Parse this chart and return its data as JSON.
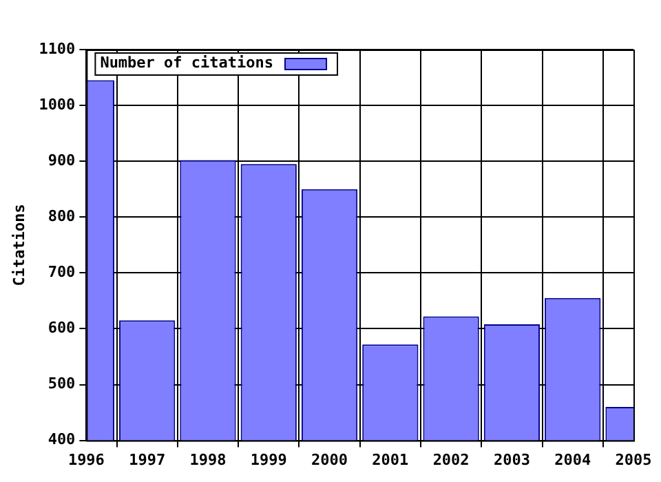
{
  "chart_data": {
    "type": "bar",
    "ylabel": "Citations",
    "x": [
      1996,
      1997,
      1998,
      1999,
      2000,
      2001,
      2002,
      2003,
      2004,
      2005
    ],
    "series": [
      {
        "name": "Number of citations",
        "color": "#7f7fff",
        "values": [
          1045,
          615,
          902,
          895,
          850,
          572,
          622,
          608,
          655,
          460
        ]
      }
    ],
    "xlim": [
      1996,
      2005
    ],
    "xticks": [
      1996,
      1997,
      1998,
      1999,
      2000,
      2001,
      2002,
      2003,
      2004,
      2005
    ],
    "ylim": [
      400,
      1100
    ],
    "yticks": [
      400,
      500,
      600,
      700,
      800,
      900,
      1000,
      1100
    ],
    "grid": true,
    "legend": "top left"
  }
}
